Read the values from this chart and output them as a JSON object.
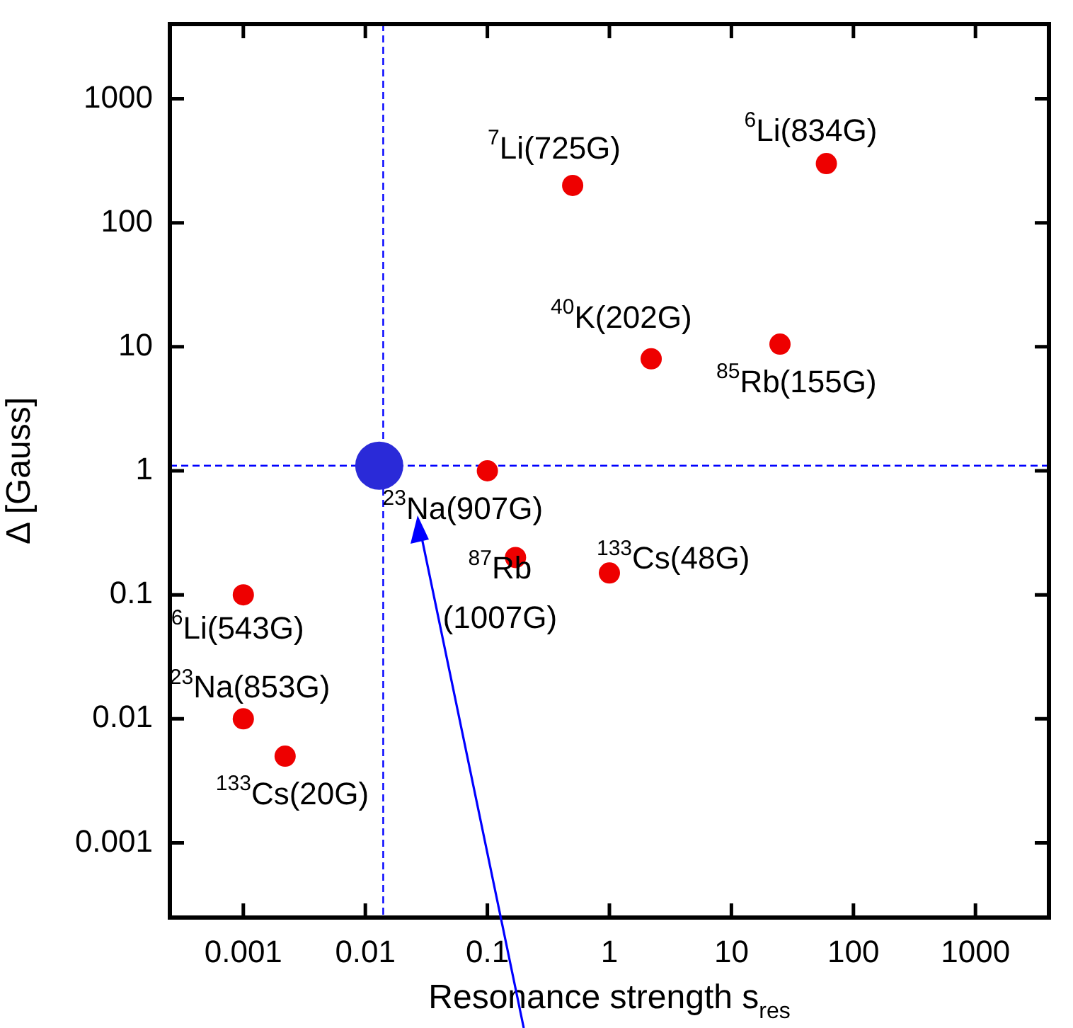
{
  "chart_data": {
    "type": "scatter",
    "xlabel": "Resonance strength s$_{res}$",
    "ylabel": "Δ [Gauss]",
    "log": "xy",
    "xlim": [
      0.00025,
      4000
    ],
    "ylim": [
      0.00025,
      4000
    ],
    "xticks": [
      0.001,
      0.01,
      0.1,
      1,
      10,
      100,
      1000
    ],
    "yticks": [
      0.001,
      0.01,
      0.1,
      1,
      10,
      100,
      1000
    ],
    "grid": false,
    "legend": false,
    "marker": "circle",
    "series": [
      {
        "color": "#ee0000",
        "x": [
          0.5,
          60,
          2.2,
          25,
          0.1,
          0.17,
          1,
          0.001,
          0.001,
          0.0022
        ],
        "values": [
          200,
          300,
          8,
          10.5,
          1,
          0.2,
          0.15,
          0.1,
          0.01,
          0.005
        ]
      },
      {
        "color": "#2a2ad8",
        "x": [
          0.013
        ],
        "values": [
          1.1
        ]
      }
    ],
    "ref_lines": [
      {
        "axis": "x",
        "value": 0.014,
        "color": "#0000ff",
        "line_style": "dashed"
      },
      {
        "axis": "y",
        "value": 1.1,
        "color": "#0000ff",
        "line_style": "dashed"
      }
    ],
    "annotations": [
      {
        "text": "$^{7}$Li(725G)",
        "x": 0.5,
        "y": 200
      },
      {
        "text": "$^{6}$Li(834G)",
        "x": 60,
        "y": 300
      },
      {
        "text": "$^{40}$K(202G)",
        "x": 2.2,
        "y": 8
      },
      {
        "text": "$^{85}$Rb(155G)",
        "x": 25,
        "y": 10.5
      },
      {
        "text": "$^{23}$Na(907G)",
        "x": 0.1,
        "y": 1
      },
      {
        "text": "$^{87}$Rb\n(1007G)",
        "x": 0.17,
        "y": 0.2
      },
      {
        "text": "$^{133}$Cs(48G)",
        "x": 1,
        "y": 0.15
      },
      {
        "text": "$^{6}$Li(543G)",
        "x": 0.001,
        "y": 0.1
      },
      {
        "text": "$^{23}$Na(853G)",
        "x": 0.001,
        "y": 0.01
      },
      {
        "text": "$^{133}$Cs(20G)",
        "x": 0.0022,
        "y": 0.005
      }
    ]
  }
}
